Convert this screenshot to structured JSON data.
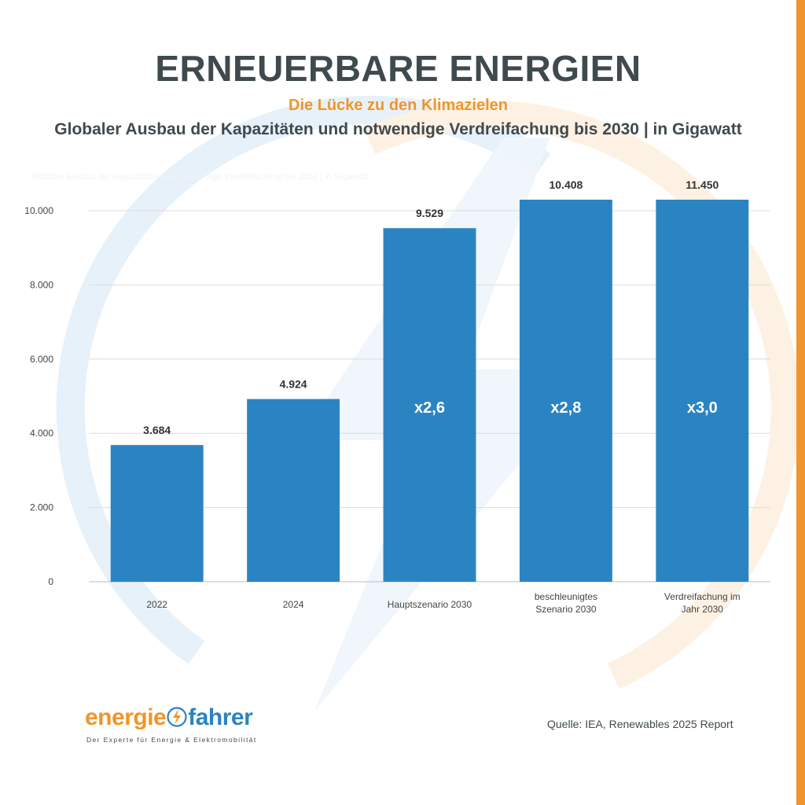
{
  "header": {
    "title": "ERNEUERBARE ENERGIEN",
    "subtitle": "Die Lücke zu den Klimazielen",
    "description": "Globaler Ausbau der Kapazitäten und notwendige Verdreifachung bis 2030 | in Gigawatt"
  },
  "faded_note": "Globaler Ausbau der Kapazitäten und notwendige Verdreifachung bis 2030 | in Gigawatt",
  "colors": {
    "bar": "#2b84c2",
    "accent_orange": "#f0952b",
    "text_dark": "#3f4a4e",
    "grid": "#dcdcdc",
    "watermark_blue": "#e7f1fa",
    "watermark_orange": "#fdf1e3"
  },
  "chart_data": {
    "type": "bar",
    "categories": [
      "2022",
      "2024",
      "Hauptszenario 2030",
      "beschleunigtes Szenario 2030",
      "Verdreifachung im Jahr 2030"
    ],
    "category_lines": [
      [
        "2022"
      ],
      [
        "2024"
      ],
      [
        "Hauptszenario 2030"
      ],
      [
        "beschleunigtes",
        "Szenario 2030"
      ],
      [
        "Verdreifachung im",
        "Jahr 2030"
      ]
    ],
    "values": [
      3684,
      4924,
      9529,
      10408,
      11450
    ],
    "value_labels": [
      "3.684",
      "4.924",
      "9.529",
      "10.408",
      "11.450"
    ],
    "multipliers": [
      "",
      "",
      "x2,6",
      "x2,8",
      "x3,0"
    ],
    "y_ticks": [
      0,
      2000,
      4000,
      6000,
      8000,
      10000
    ],
    "y_tick_labels": [
      "0",
      "2.000",
      "4.000",
      "6.000",
      "8.000",
      "10.000"
    ],
    "ylim": [
      0,
      10000
    ],
    "title": "Globaler Ausbau der Kapazitäten und notwendige Verdreifachung bis 2030",
    "ylabel": "Gigawatt",
    "xlabel": "",
    "grid": true
  },
  "logo": {
    "part1": "energie",
    "part2": "fahrer",
    "tagline": "Der Experte für Energie & Elektromobilität"
  },
  "source": "Quelle: IEA, Renewables 2025 Report"
}
